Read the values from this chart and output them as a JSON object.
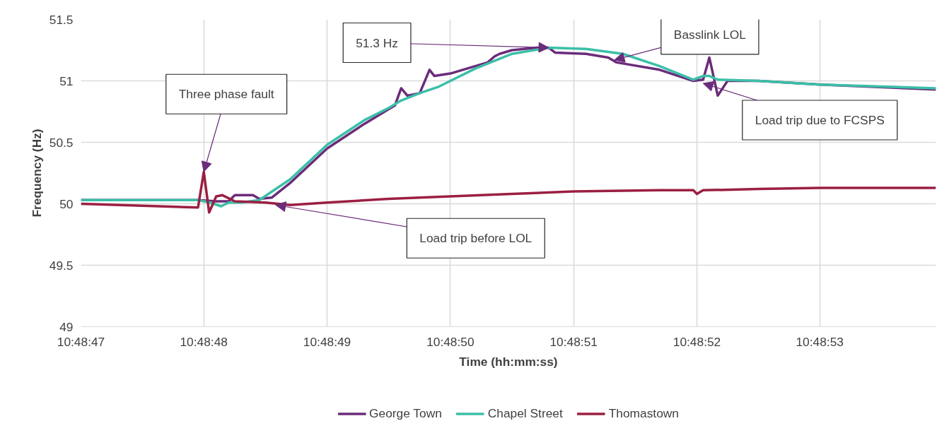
{
  "chart_data": {
    "type": "line",
    "xlabel": "Time (hh:mm:ss)",
    "ylabel": "Frequency (Hz)",
    "xlim": [
      10.813056,
      10.814984
    ],
    "ylim": [
      49,
      51.5
    ],
    "xticks": [
      {
        "value": 10.813056,
        "label": "10:48:47"
      },
      {
        "value": 10.813333,
        "label": "10:48:48"
      },
      {
        "value": 10.813611,
        "label": "10:48:49"
      },
      {
        "value": 10.813889,
        "label": "10:48:50"
      },
      {
        "value": 10.814167,
        "label": "10:48:51"
      },
      {
        "value": 10.814445,
        "label": "10:48:52"
      },
      {
        "value": 10.814722,
        "label": "10:48:53"
      }
    ],
    "yticks": [
      49,
      49.5,
      50,
      50.5,
      51,
      51.5
    ],
    "grid": true,
    "legend": "bottom",
    "marker": "none",
    "line_style": "solid",
    "series": [
      {
        "name": "George Town",
        "color": "#6b2c7a",
        "x": [
          10.813056,
          10.81332,
          10.813361,
          10.813389,
          10.813403,
          10.813444,
          10.813458,
          10.813486,
          10.813528,
          10.813611,
          10.813695,
          10.81375,
          10.813764,
          10.813778,
          10.813792,
          10.81382,
          10.813842,
          10.813853,
          10.813889,
          10.813973,
          10.813989,
          10.814,
          10.814028,
          10.814084,
          10.814111,
          10.814125,
          10.814195,
          10.814245,
          10.814264,
          10.814361,
          10.814437,
          10.814459,
          10.814473,
          10.814492,
          10.814514,
          10.814584,
          10.814723,
          10.814984
        ],
        "values": [
          50.03,
          50.03,
          50.02,
          50.02,
          50.07,
          50.07,
          50.04,
          50.05,
          50.17,
          50.45,
          50.65,
          50.77,
          50.8,
          50.94,
          50.88,
          50.9,
          51.09,
          51.04,
          51.06,
          51.15,
          51.2,
          51.22,
          51.25,
          51.27,
          51.27,
          51.23,
          51.22,
          51.19,
          51.15,
          51.09,
          51.0,
          51.01,
          51.19,
          50.88,
          51.0,
          51.0,
          50.97,
          50.93
        ]
      },
      {
        "name": "Chapel Street",
        "color": "#3bbfa8",
        "x": [
          10.813056,
          10.81332,
          10.813347,
          10.813372,
          10.813389,
          10.813417,
          10.813458,
          10.813528,
          10.813611,
          10.813695,
          10.81375,
          10.813778,
          10.81382,
          10.813861,
          10.813945,
          10.814028,
          10.814111,
          10.814195,
          10.814278,
          10.814361,
          10.814437,
          10.814459,
          10.814473,
          10.814492,
          10.814584,
          10.814723,
          10.814984
        ],
        "values": [
          50.03,
          50.03,
          50.01,
          49.98,
          50.01,
          50.01,
          50.03,
          50.2,
          50.48,
          50.68,
          50.78,
          50.84,
          50.9,
          50.95,
          51.1,
          51.22,
          51.27,
          51.26,
          51.22,
          51.12,
          51.01,
          51.04,
          51.04,
          51.01,
          51.0,
          50.97,
          50.94
        ]
      },
      {
        "name": "Thomastown",
        "color": "#9b1f42",
        "x": [
          10.813056,
          10.81332,
          10.813333,
          10.813345,
          10.813361,
          10.813375,
          10.813403,
          10.813472,
          10.813528,
          10.813611,
          10.81375,
          10.813889,
          10.814028,
          10.814167,
          10.814361,
          10.814437,
          10.814445,
          10.814459,
          10.814584,
          10.814723,
          10.814984
        ],
        "values": [
          50.0,
          49.97,
          50.26,
          49.93,
          50.06,
          50.07,
          50.02,
          50.01,
          49.99,
          50.01,
          50.04,
          50.06,
          50.08,
          50.1,
          50.11,
          50.11,
          50.08,
          50.11,
          50.12,
          50.13,
          50.13
        ]
      }
    ],
    "annotations": [
      {
        "text": "Three phase fault",
        "x": 10.813333,
        "y": 50.26
      },
      {
        "text": "51.3 Hz",
        "x": 10.814111,
        "y": 51.27
      },
      {
        "text": "Basslink LOL",
        "x": 10.814259,
        "y": 51.17
      },
      {
        "text": "Load trip due to FCSPS",
        "x": 10.814459,
        "y": 50.98
      },
      {
        "text": "Load trip before LOL",
        "x": 10.813495,
        "y": 49.99
      }
    ]
  }
}
